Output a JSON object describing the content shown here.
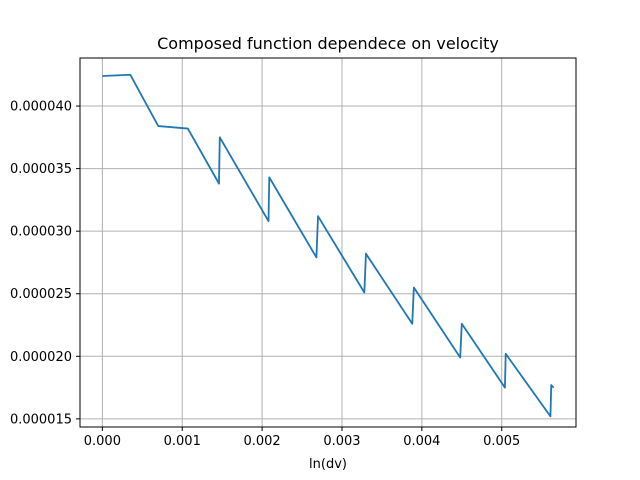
{
  "chart_data": {
    "type": "line",
    "title": "Composed function dependece on velocity",
    "xlabel": "ln(dv)",
    "ylabel": "",
    "xlim": [
      -0.00028,
      0.00593
    ],
    "ylim": [
      1.435e-05,
      4.384e-05
    ],
    "x_ticks": [
      0.0,
      0.001,
      0.002,
      0.003,
      0.004,
      0.005
    ],
    "x_tick_labels": [
      "0.000",
      "0.001",
      "0.002",
      "0.003",
      "0.004",
      "0.005"
    ],
    "y_ticks": [
      1.5e-05,
      2e-05,
      2.5e-05,
      3e-05,
      3.5e-05,
      4e-05
    ],
    "y_tick_labels": [
      "0.000015",
      "0.000020",
      "0.000025",
      "0.000030",
      "0.000035",
      "0.000040"
    ],
    "grid": true,
    "colors": {
      "series": "#1f77b4"
    },
    "series": [
      {
        "x": [
          0.0,
          0.00035,
          0.0007,
          0.00107,
          0.00146,
          0.00147,
          0.00208,
          0.00209,
          0.00268,
          0.0027,
          0.00328,
          0.0033,
          0.00388,
          0.0039,
          0.00448,
          0.0045,
          0.00504,
          0.00505,
          0.00561,
          0.00562,
          0.00565
        ],
        "y": [
          4.24e-05,
          4.25e-05,
          3.84e-05,
          3.82e-05,
          3.38e-05,
          3.75e-05,
          3.08e-05,
          3.43e-05,
          2.79e-05,
          3.12e-05,
          2.51e-05,
          2.82e-05,
          2.26e-05,
          2.55e-05,
          1.99e-05,
          2.26e-05,
          1.75e-05,
          2.02e-05,
          1.52e-05,
          1.77e-05,
          1.75e-05
        ]
      }
    ]
  }
}
